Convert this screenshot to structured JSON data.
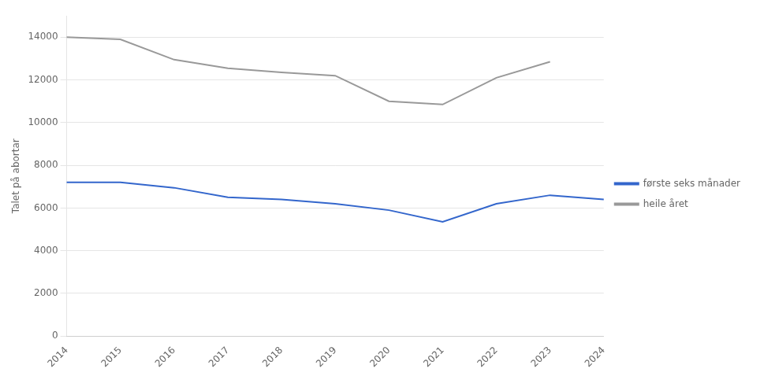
{
  "chart_data": {
    "type": "line",
    "categories": [
      "2014",
      "2015",
      "2016",
      "2017",
      "2018",
      "2019",
      "2020",
      "2021",
      "2022",
      "2023",
      "2024"
    ],
    "series": [
      {
        "name": "første seks månader",
        "color": "#3366CC",
        "values": [
          7200,
          7200,
          6950,
          6500,
          6400,
          6200,
          5900,
          5350,
          6200,
          6600,
          6400
        ]
      },
      {
        "name": "heile året",
        "color": "#999999",
        "values": [
          14000,
          13900,
          12950,
          12550,
          12350,
          12200,
          11000,
          10850,
          12100,
          12850,
          null
        ]
      }
    ],
    "ylabel": "Talet på abortar",
    "ylim": [
      0,
      15000
    ],
    "yticks": [
      0,
      2000,
      4000,
      6000,
      8000,
      10000,
      12000,
      14000
    ],
    "grid": true,
    "legend": "right"
  }
}
